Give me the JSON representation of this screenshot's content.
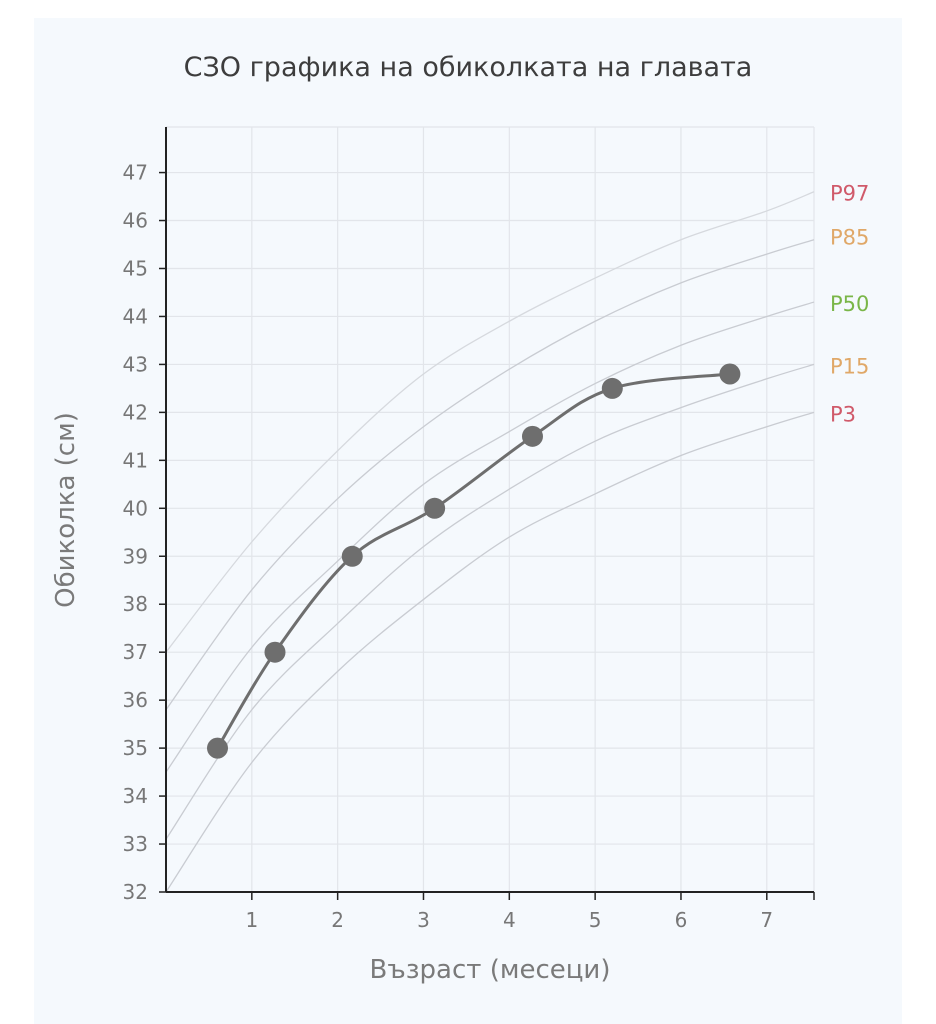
{
  "chart_data": {
    "type": "line",
    "title": "СЗО графика на обиколката на главата",
    "xlabel": "Възраст (месеци)",
    "ylabel": "Обиколка (см)",
    "xlim": [
      0,
      7.55
    ],
    "ylim": [
      32,
      47.95
    ],
    "x_ticks": [
      1,
      2,
      3,
      4,
      5,
      6,
      7
    ],
    "y_ticks": [
      32,
      33,
      34,
      35,
      36,
      37,
      38,
      39,
      40,
      41,
      42,
      43,
      44,
      45,
      46,
      47
    ],
    "grid": true,
    "series": [
      {
        "name": "",
        "x": [
          0.6,
          1.27,
          2.17,
          3.13,
          4.27,
          5.2,
          6.57
        ],
        "y": [
          35,
          37,
          39,
          40,
          41.5,
          42.5,
          42.8
        ]
      }
    ],
    "percentiles": [
      {
        "name": "P97",
        "color": "#d05a6a",
        "x": [
          0,
          1,
          2,
          3,
          4,
          5,
          6,
          7,
          7.55
        ],
        "y": [
          37.0,
          39.3,
          41.2,
          42.8,
          43.9,
          44.8,
          45.6,
          46.2,
          46.6
        ]
      },
      {
        "name": "P85",
        "color": "#e0a868",
        "x": [
          0,
          1,
          2,
          3,
          4,
          5,
          6,
          7,
          7.55
        ],
        "y": [
          35.8,
          38.3,
          40.2,
          41.7,
          42.9,
          43.9,
          44.7,
          45.3,
          45.6
        ]
      },
      {
        "name": "P50",
        "color": "#7ab648",
        "x": [
          0,
          1,
          2,
          3,
          4,
          5,
          6,
          7,
          7.55
        ],
        "y": [
          34.5,
          37.1,
          38.9,
          40.5,
          41.6,
          42.6,
          43.4,
          44.0,
          44.3
        ]
      },
      {
        "name": "P15",
        "color": "#e0a868",
        "x": [
          0,
          1,
          2,
          3,
          4,
          5,
          6,
          7,
          7.55
        ],
        "y": [
          33.1,
          35.8,
          37.6,
          39.2,
          40.4,
          41.4,
          42.1,
          42.7,
          43.0
        ]
      },
      {
        "name": "P3",
        "color": "#d05a6a",
        "x": [
          0,
          1,
          2,
          3,
          4,
          5,
          6,
          7,
          7.55
        ],
        "y": [
          32.0,
          34.7,
          36.6,
          38.1,
          39.4,
          40.3,
          41.1,
          41.7,
          42.0
        ]
      }
    ]
  }
}
